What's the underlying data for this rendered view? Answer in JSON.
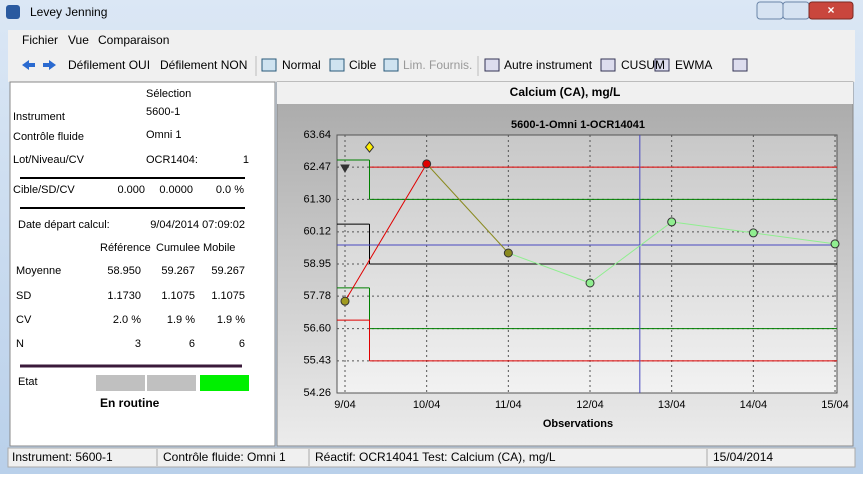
{
  "window": {
    "title": "Levey Jenning"
  },
  "menu": [
    "Fichier",
    "Vue",
    "Comparaison"
  ],
  "toolbar": [
    "Défilement OUI",
    "Défilement NON",
    "Normal",
    "Cible",
    "Lim. Fournis.",
    "Autre instrument",
    "CUSUM",
    "EWMA"
  ],
  "panel": {
    "selection_header": "Sélection",
    "rows": [
      [
        "Instrument",
        "5600-1"
      ],
      [
        "Contrôle fluide",
        "Omni 1"
      ],
      [
        "Lot/Niveau/CV",
        "OCR1404:",
        "1"
      ]
    ],
    "target": [
      "Cible/SD/CV",
      "0.000",
      "0.0000",
      "0.0 %"
    ],
    "start": [
      "Date départ calcul:",
      "9/04/2014 07:09:02"
    ],
    "stats_header": [
      "Référence",
      "Cumulee",
      "Mobile"
    ],
    "stats": [
      [
        "Moyenne",
        "58.950",
        "59.267",
        "59.267"
      ],
      [
        "SD",
        "1.1730",
        "1.1075",
        "1.1075"
      ],
      [
        "CV",
        "2.0 %",
        "1.9 %",
        "1.9 %"
      ],
      [
        "N",
        "3",
        "6",
        "6"
      ]
    ],
    "state_label": "Etat",
    "state": "En routine"
  },
  "chart_header": "Calcium (CA), mg/L",
  "chart_data": {
    "type": "line",
    "title": "5600-1-Omni 1-OCR14041",
    "xlabel": "Observations",
    "categories": [
      "9/04",
      "10/04",
      "11/04",
      "12/04",
      "13/04",
      "14/04",
      "15/04"
    ],
    "values": [
      57.6,
      62.59,
      59.35,
      58.26,
      60.48,
      60.08,
      59.68
    ],
    "point_colors": [
      "#a09a20",
      "#e00000",
      "#8a8a20",
      "#90ee90",
      "#90ee90",
      "#90ee90",
      "#90ee90"
    ],
    "ylim": [
      54.26,
      63.64
    ],
    "yticks": [
      54.26,
      55.43,
      {
        "value": 56.6,
        "label": "56.60"
      },
      57.78,
      58.95,
      60.12,
      {
        "value": 61.3,
        "label": "61.30"
      },
      62.47,
      63.64
    ],
    "grid": true,
    "limit_x": 0.3,
    "limits": [
      {
        "color": "#e00000",
        "values": [
          null,
          62.47
        ]
      },
      {
        "color": "#008000",
        "values": [
          62.73,
          61.3
        ]
      },
      {
        "color": "#000000",
        "values": [
          60.4,
          58.95
        ]
      },
      {
        "color": "#008000",
        "values": [
          58.08,
          56.6
        ]
      },
      {
        "color": "#e00000",
        "values": [
          56.91,
          55.43
        ]
      }
    ],
    "markers": [
      {
        "shape": "diamond",
        "x": 0.3,
        "value": 63.2,
        "color": "#ffee00"
      },
      {
        "shape": "triangle",
        "x": 0,
        "value": 62.44,
        "color": "#333333"
      }
    ],
    "cursor": {
      "x": 3.61,
      "value": 59.64,
      "color": "#4848c0"
    }
  },
  "status": [
    "Instrument: 5600-1",
    "Contrôle fluide: Omni 1",
    "Réactif: OCR14041 Test: Calcium (CA), mg/L",
    "15/04/2014"
  ]
}
